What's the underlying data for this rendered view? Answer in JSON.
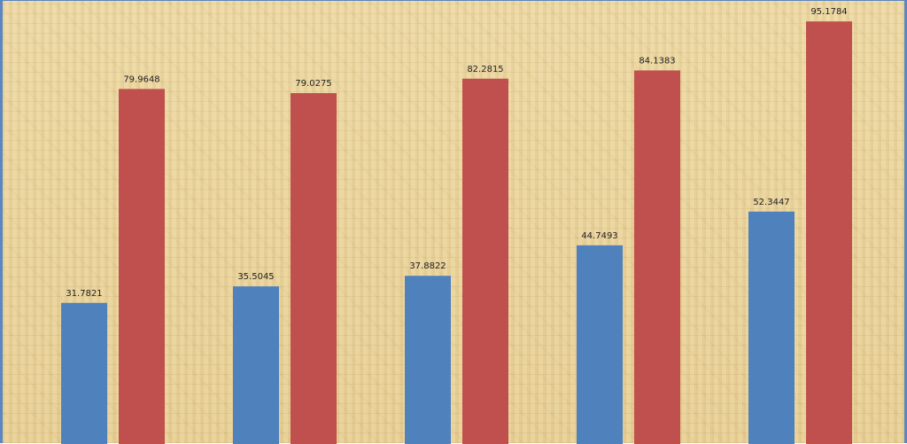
{
  "chart_data": {
    "type": "bar",
    "categories": [
      "",
      "",
      "",
      "",
      ""
    ],
    "series": [
      {
        "color": "#4f81bd",
        "values": [
          31.7821,
          35.5045,
          37.8822,
          44.7493,
          52.3447
        ],
        "labels": [
          "31.7821",
          "35.5045",
          "37.8822",
          "44.7493",
          "52.3447"
        ]
      },
      {
        "color": "#c0504d",
        "values": [
          79.9648,
          79.0275,
          82.2815,
          84.1383,
          95.1784
        ],
        "labels": [
          "79.9648",
          "79.0275",
          "82.2815",
          "84.1383",
          "95.1784"
        ]
      }
    ],
    "title": "",
    "xlabel": "",
    "ylabel": "",
    "grid": false,
    "ylim": [
      0,
      110
    ]
  }
}
